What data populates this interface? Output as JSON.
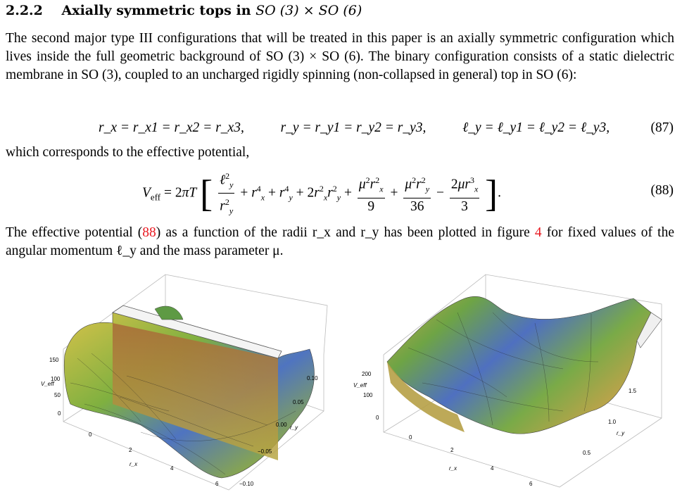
{
  "section": {
    "number": "2.2.2",
    "title_text": "Axially symmetric tops in",
    "title_math": "SO (3) × SO (6)"
  },
  "paragraph1": "The second major type III configurations that will be treated in this paper is an axially symmetric configuration which lives inside the full geometric background of SO (3) × SO (6). The binary configuration consists of a static dielectric membrane in SO (3), coupled to an uncharged rigidly spinning (non-collapsed in general) top in SO (6):",
  "eq87": {
    "part1": "r_x = r_x1 = r_x2 = r_x3,",
    "part2": "r_y = r_y1 = r_y2 = r_y3,",
    "part3": "ℓ_y = ℓ_y1 = ℓ_y2 = ℓ_y3,",
    "number": "(87)"
  },
  "paragraph2": "which corresponds to the effective potential,",
  "eq88": {
    "number": "(88)"
  },
  "paragraph3": {
    "before": "The effective potential (",
    "ref_eq": "88",
    "middle": ") as a function of the radii r_x and r_y has been plotted in figure ",
    "ref_fig": "4",
    "after": " for fixed values of the angular momentum ℓ_y and the mass parameter μ."
  },
  "plot_left": {
    "zlabel": "V_eff",
    "z_ticks": [
      "150",
      "100",
      "50",
      "0"
    ],
    "x_ticks": [
      "0",
      "2",
      "4",
      "6"
    ],
    "x_label": "r_x",
    "y_ticks": [
      "0.10",
      "0.05",
      "0.00",
      "−0.05",
      "−0.10"
    ],
    "y_label": "r_y"
  },
  "plot_right": {
    "zlabel": "V_eff",
    "z_ticks": [
      "200",
      "100",
      "0"
    ],
    "x_ticks": [
      "0",
      "2",
      "4",
      "6"
    ],
    "x_label": "r_x",
    "y_ticks": [
      "1.5",
      "1.0",
      "0.5"
    ],
    "y_label": "r_y"
  },
  "colors": {
    "link_red": "#e8171f",
    "surface_green": "#7fb040",
    "surface_blue": "#4f74c0",
    "surface_yellow": "#c8b844"
  }
}
